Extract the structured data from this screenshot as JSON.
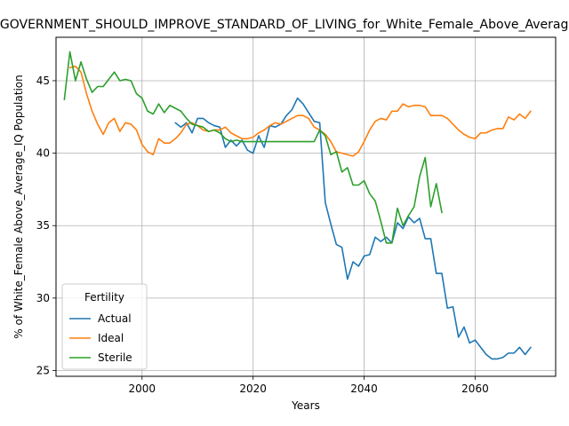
{
  "chart_data": {
    "type": "line",
    "title": "GOVERNMENT_SHOULD_IMPROVE_STANDARD_OF_LIVING_for_White_Female_Above_Average_IQ",
    "xlabel": "Years",
    "ylabel": "% of White_Female Above_Average_IQ Population",
    "xlim": [
      1984.5,
      2074.5
    ],
    "ylim": [
      24.6,
      48.0
    ],
    "xticks": [
      2000,
      2020,
      2040,
      2060
    ],
    "yticks": [
      25,
      30,
      35,
      40,
      45
    ],
    "grid": true,
    "legend": {
      "title": "Fertility",
      "placement": "lower-left"
    },
    "series": [
      {
        "name": "Actual",
        "color": "#1f77b4",
        "x": [
          2006,
          2007,
          2008,
          2009,
          2010,
          2011,
          2012,
          2013,
          2014,
          2015,
          2016,
          2017,
          2018,
          2019,
          2020,
          2021,
          2022,
          2023,
          2024,
          2025,
          2026,
          2027,
          2028,
          2029,
          2030,
          2031,
          2032,
          2033,
          2034,
          2035,
          2036,
          2037,
          2038,
          2039,
          2040,
          2041,
          2042,
          2043,
          2044,
          2045,
          2046,
          2047,
          2048,
          2049,
          2050,
          2051,
          2052,
          2053,
          2054,
          2055,
          2056,
          2057,
          2058,
          2059,
          2060,
          2061,
          2062,
          2063,
          2064,
          2065,
          2066,
          2067,
          2068,
          2069,
          2070
        ],
        "y": [
          42.1,
          41.8,
          42.1,
          41.4,
          42.4,
          42.4,
          42.1,
          41.9,
          41.8,
          40.4,
          40.9,
          40.5,
          40.9,
          40.2,
          40.0,
          41.2,
          40.4,
          41.9,
          41.8,
          42.0,
          42.6,
          43.0,
          43.8,
          43.4,
          42.8,
          42.2,
          42.1,
          36.6,
          35.1,
          33.7,
          33.5,
          31.3,
          32.5,
          32.2,
          32.9,
          33.0,
          34.2,
          33.9,
          34.2,
          33.8,
          35.2,
          34.8,
          35.6,
          35.2,
          35.5,
          34.1,
          34.1,
          31.7,
          31.7,
          29.3,
          29.4,
          27.3,
          28.0,
          26.9,
          27.1,
          26.6,
          26.1,
          25.8,
          25.8,
          25.9,
          26.2,
          26.2,
          26.6,
          26.1,
          26.6
        ]
      },
      {
        "name": "Ideal",
        "color": "#ff7f0e",
        "x": [
          1987,
          1988,
          1989,
          1990,
          1991,
          1992,
          1993,
          1994,
          1995,
          1996,
          1997,
          1998,
          1999,
          2000,
          2001,
          2002,
          2003,
          2004,
          2005,
          2006,
          2007,
          2008,
          2009,
          2010,
          2011,
          2012,
          2013,
          2014,
          2015,
          2016,
          2017,
          2018,
          2019,
          2020,
          2021,
          2022,
          2023,
          2024,
          2025,
          2026,
          2027,
          2028,
          2029,
          2030,
          2031,
          2032,
          2033,
          2034,
          2035,
          2036,
          2037,
          2038,
          2039,
          2040,
          2041,
          2042,
          2043,
          2044,
          2045,
          2046,
          2047,
          2048,
          2049,
          2050,
          2051,
          2052,
          2053,
          2054,
          2055,
          2056,
          2057,
          2058,
          2059,
          2060,
          2061,
          2062,
          2063,
          2064,
          2065,
          2066,
          2067,
          2068,
          2069,
          2070
        ],
        "y": [
          45.9,
          46.0,
          45.6,
          44.1,
          42.9,
          42.0,
          41.3,
          42.1,
          42.4,
          41.5,
          42.1,
          42.0,
          41.6,
          40.6,
          40.1,
          39.9,
          41.0,
          40.7,
          40.7,
          41.0,
          41.4,
          42.0,
          42.1,
          41.9,
          41.6,
          41.5,
          41.6,
          41.6,
          41.8,
          41.4,
          41.2,
          41.0,
          41.0,
          41.1,
          41.4,
          41.6,
          41.9,
          42.1,
          42.0,
          42.2,
          42.4,
          42.6,
          42.6,
          42.4,
          41.8,
          41.6,
          41.3,
          40.8,
          40.1,
          40.0,
          39.9,
          39.8,
          40.1,
          40.8,
          41.6,
          42.2,
          42.4,
          42.3,
          42.9,
          42.9,
          43.4,
          43.2,
          43.3,
          43.3,
          43.2,
          42.6,
          42.6,
          42.6,
          42.4,
          42.0,
          41.6,
          41.3,
          41.1,
          41.0,
          41.4,
          41.4,
          41.6,
          41.7,
          41.7,
          42.5,
          42.3,
          42.7,
          42.4,
          42.9
        ]
      },
      {
        "name": "Sterile",
        "color": "#2ca02c",
        "x": [
          1986,
          1987,
          1988,
          1989,
          1990,
          1991,
          1992,
          1993,
          1994,
          1995,
          1996,
          1997,
          1998,
          1999,
          2000,
          2001,
          2002,
          2003,
          2004,
          2005,
          2006,
          2007,
          2008,
          2009,
          2010,
          2011,
          2012,
          2013,
          2014,
          2015,
          2016,
          2017,
          2018,
          2019,
          2020,
          2021,
          2022,
          2023,
          2024,
          2025,
          2026,
          2027,
          2028,
          2029,
          2030,
          2031,
          2032,
          2033,
          2034,
          2035,
          2036,
          2037,
          2038,
          2039,
          2040,
          2041,
          2042,
          2043,
          2044,
          2045,
          2046,
          2047,
          2048,
          2049,
          2050,
          2051,
          2052,
          2053,
          2054
        ],
        "y": [
          43.7,
          47.0,
          45.0,
          46.3,
          45.1,
          44.2,
          44.6,
          44.6,
          45.1,
          45.6,
          45.0,
          45.1,
          45.0,
          44.1,
          43.8,
          42.9,
          42.7,
          43.4,
          42.8,
          43.3,
          43.1,
          42.9,
          42.4,
          42.0,
          41.9,
          41.8,
          41.5,
          41.6,
          41.4,
          41.0,
          40.8,
          40.9,
          40.8,
          40.8,
          40.8,
          40.8,
          40.8,
          40.8,
          40.8,
          40.8,
          40.8,
          40.8,
          40.8,
          40.8,
          40.8,
          40.8,
          41.6,
          41.2,
          39.9,
          40.1,
          38.7,
          39.0,
          37.8,
          37.8,
          38.1,
          37.2,
          36.7,
          35.3,
          33.8,
          33.8,
          36.2,
          35.0,
          35.7,
          36.3,
          38.4,
          39.7,
          36.3,
          37.9,
          35.9
        ]
      }
    ]
  }
}
